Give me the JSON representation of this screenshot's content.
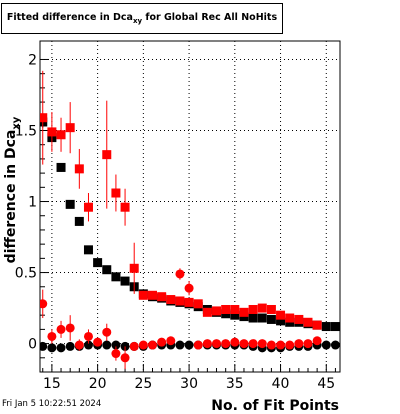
{
  "chart_data": {
    "type": "scatter",
    "title_prefix": "Fitted difference in Dca",
    "title_sub": "xy",
    "title_suffix": " for Global Rec All NoHits",
    "xlabel": "No. of Fit Points",
    "ylabel_main": "difference in Dca",
    "ylabel_sub": "xy",
    "xlim": [
      13.7,
      46.5
    ],
    "ylim": [
      -0.2,
      2.13
    ],
    "x_ticks": [
      15,
      20,
      25,
      30,
      35,
      40,
      45
    ],
    "y_ticks": [
      0,
      0.5,
      1,
      1.5,
      2
    ],
    "y_tick_labels": [
      "0",
      "0.5",
      "1",
      "1.5",
      "2"
    ],
    "grid": true,
    "series": [
      {
        "marker": "square",
        "color": "#000000",
        "points": [
          {
            "x": 14,
            "y": 1.56,
            "err": 0.04
          },
          {
            "x": 15,
            "y": 1.45,
            "err": 0.03
          },
          {
            "x": 16,
            "y": 1.24,
            "err": 0.03
          },
          {
            "x": 17,
            "y": 0.98,
            "err": 0.02
          },
          {
            "x": 18,
            "y": 0.86,
            "err": 0.02
          },
          {
            "x": 19,
            "y": 0.66,
            "err": 0.02
          },
          {
            "x": 20,
            "y": 0.57,
            "err": 0.02
          },
          {
            "x": 21,
            "y": 0.52,
            "err": 0.01
          },
          {
            "x": 22,
            "y": 0.47,
            "err": 0.01
          },
          {
            "x": 23,
            "y": 0.44,
            "err": 0.01
          },
          {
            "x": 24,
            "y": 0.4,
            "err": 0.01
          },
          {
            "x": 25,
            "y": 0.35,
            "err": 0.01
          },
          {
            "x": 26,
            "y": 0.33,
            "err": 0.01
          },
          {
            "x": 27,
            "y": 0.32,
            "err": 0.01
          },
          {
            "x": 28,
            "y": 0.3,
            "err": 0.01
          },
          {
            "x": 29,
            "y": 0.29,
            "err": 0.01
          },
          {
            "x": 30,
            "y": 0.28,
            "err": 0.01
          },
          {
            "x": 31,
            "y": 0.26,
            "err": 0.01
          },
          {
            "x": 32,
            "y": 0.24,
            "err": 0.01
          },
          {
            "x": 33,
            "y": 0.22,
            "err": 0.01
          },
          {
            "x": 34,
            "y": 0.21,
            "err": 0.01
          },
          {
            "x": 35,
            "y": 0.2,
            "err": 0.01
          },
          {
            "x": 36,
            "y": 0.19,
            "err": 0.01
          },
          {
            "x": 37,
            "y": 0.18,
            "err": 0.01
          },
          {
            "x": 38,
            "y": 0.18,
            "err": 0.01
          },
          {
            "x": 39,
            "y": 0.17,
            "err": 0.01
          },
          {
            "x": 40,
            "y": 0.16,
            "err": 0.01
          },
          {
            "x": 41,
            "y": 0.15,
            "err": 0.01
          },
          {
            "x": 42,
            "y": 0.15,
            "err": 0.01
          },
          {
            "x": 43,
            "y": 0.14,
            "err": 0.01
          },
          {
            "x": 44,
            "y": 0.13,
            "err": 0.01
          },
          {
            "x": 45,
            "y": 0.12,
            "err": 0.01
          },
          {
            "x": 46,
            "y": 0.12,
            "err": 0.01
          }
        ]
      },
      {
        "marker": "square",
        "color": "#ff0000",
        "points": [
          {
            "x": 14,
            "y": 1.59,
            "err": 0.33
          },
          {
            "x": 15,
            "y": 1.49,
            "err": 0.14
          },
          {
            "x": 16,
            "y": 1.47,
            "err": 0.12
          },
          {
            "x": 17,
            "y": 1.52,
            "err": 0.18
          },
          {
            "x": 18,
            "y": 1.23,
            "err": 0.14
          },
          {
            "x": 19,
            "y": 0.96,
            "err": 0.1
          },
          {
            "x": 21,
            "y": 1.33,
            "err": 0.38
          },
          {
            "x": 22,
            "y": 1.06,
            "err": 0.13
          },
          {
            "x": 23,
            "y": 0.96,
            "err": 0.13
          },
          {
            "x": 24,
            "y": 0.53,
            "err": 0.18
          },
          {
            "x": 25,
            "y": 0.34,
            "err": 0.02
          },
          {
            "x": 26,
            "y": 0.34,
            "err": 0.02
          },
          {
            "x": 27,
            "y": 0.33,
            "err": 0.02
          },
          {
            "x": 28,
            "y": 0.31,
            "err": 0.02
          },
          {
            "x": 29,
            "y": 0.3,
            "err": 0.02
          },
          {
            "x": 30,
            "y": 0.29,
            "err": 0.02
          },
          {
            "x": 31,
            "y": 0.28,
            "err": 0.02
          },
          {
            "x": 32,
            "y": 0.22,
            "err": 0.02
          },
          {
            "x": 33,
            "y": 0.23,
            "err": 0.02
          },
          {
            "x": 34,
            "y": 0.24,
            "err": 0.02
          },
          {
            "x": 35,
            "y": 0.24,
            "err": 0.02
          },
          {
            "x": 36,
            "y": 0.22,
            "err": 0.02
          },
          {
            "x": 37,
            "y": 0.24,
            "err": 0.02
          },
          {
            "x": 38,
            "y": 0.25,
            "err": 0.02
          },
          {
            "x": 39,
            "y": 0.24,
            "err": 0.02
          },
          {
            "x": 40,
            "y": 0.2,
            "err": 0.02
          },
          {
            "x": 41,
            "y": 0.18,
            "err": 0.02
          },
          {
            "x": 42,
            "y": 0.17,
            "err": 0.02
          },
          {
            "x": 43,
            "y": 0.15,
            "err": 0.02
          },
          {
            "x": 44,
            "y": 0.13,
            "err": 0.02
          }
        ]
      },
      {
        "marker": "circle",
        "color": "#000000",
        "points": [
          {
            "x": 14,
            "y": -0.02,
            "err": 0.01
          },
          {
            "x": 15,
            "y": -0.03,
            "err": 0.01
          },
          {
            "x": 16,
            "y": -0.03,
            "err": 0.01
          },
          {
            "x": 17,
            "y": -0.02,
            "err": 0.01
          },
          {
            "x": 18,
            "y": -0.02,
            "err": 0.01
          },
          {
            "x": 19,
            "y": -0.01,
            "err": 0.01
          },
          {
            "x": 20,
            "y": -0.01,
            "err": 0.01
          },
          {
            "x": 21,
            "y": -0.01,
            "err": 0.01
          },
          {
            "x": 22,
            "y": -0.01,
            "err": 0.01
          },
          {
            "x": 23,
            "y": -0.02,
            "err": 0.01
          },
          {
            "x": 24,
            "y": -0.02,
            "err": 0.01
          },
          {
            "x": 25,
            "y": -0.02,
            "err": 0.01
          },
          {
            "x": 26,
            "y": -0.01,
            "err": 0.01
          },
          {
            "x": 27,
            "y": -0.01,
            "err": 0.01
          },
          {
            "x": 28,
            "y": -0.01,
            "err": 0.01
          },
          {
            "x": 29,
            "y": -0.01,
            "err": 0.01
          },
          {
            "x": 30,
            "y": -0.01,
            "err": 0.01
          },
          {
            "x": 31,
            "y": -0.01,
            "err": 0.01
          },
          {
            "x": 32,
            "y": -0.01,
            "err": 0.01
          },
          {
            "x": 33,
            "y": -0.01,
            "err": 0.01
          },
          {
            "x": 34,
            "y": -0.01,
            "err": 0.01
          },
          {
            "x": 35,
            "y": -0.01,
            "err": 0.01
          },
          {
            "x": 36,
            "y": -0.01,
            "err": 0.01
          },
          {
            "x": 37,
            "y": -0.02,
            "err": 0.01
          },
          {
            "x": 38,
            "y": -0.03,
            "err": 0.01
          },
          {
            "x": 39,
            "y": -0.03,
            "err": 0.01
          },
          {
            "x": 40,
            "y": -0.03,
            "err": 0.01
          },
          {
            "x": 41,
            "y": -0.02,
            "err": 0.01
          },
          {
            "x": 42,
            "y": -0.02,
            "err": 0.01
          },
          {
            "x": 43,
            "y": -0.02,
            "err": 0.01
          },
          {
            "x": 44,
            "y": -0.01,
            "err": 0.01
          },
          {
            "x": 45,
            "y": -0.01,
            "err": 0.01
          },
          {
            "x": 46,
            "y": -0.01,
            "err": 0.01
          }
        ]
      },
      {
        "marker": "circle",
        "color": "#ff0000",
        "points": [
          {
            "x": 14,
            "y": 0.28,
            "err": 0.1
          },
          {
            "x": 15,
            "y": 0.05,
            "err": 0.05
          },
          {
            "x": 16,
            "y": 0.1,
            "err": 0.06
          },
          {
            "x": 17,
            "y": 0.11,
            "err": 0.09
          },
          {
            "x": 18,
            "y": -0.01,
            "err": 0.04
          },
          {
            "x": 19,
            "y": 0.05,
            "err": 0.05
          },
          {
            "x": 20,
            "y": 0.01,
            "err": 0.03
          },
          {
            "x": 21,
            "y": 0.08,
            "err": 0.06
          },
          {
            "x": 22,
            "y": -0.07,
            "err": 0.05
          },
          {
            "x": 23,
            "y": -0.1,
            "err": 0.08
          },
          {
            "x": 24,
            "y": -0.02,
            "err": 0.02
          },
          {
            "x": 25,
            "y": -0.01,
            "err": 0.02
          },
          {
            "x": 26,
            "y": -0.01,
            "err": 0.01
          },
          {
            "x": 27,
            "y": 0.01,
            "err": 0.01
          },
          {
            "x": 28,
            "y": 0.02,
            "err": 0.01
          },
          {
            "x": 29,
            "y": 0.49,
            "err": 0.04
          },
          {
            "x": 30,
            "y": 0.39,
            "err": 0.05
          },
          {
            "x": 31,
            "y": -0.01,
            "err": 0.01
          },
          {
            "x": 32,
            "y": 0.0,
            "err": 0.01
          },
          {
            "x": 33,
            "y": 0.0,
            "err": 0.01
          },
          {
            "x": 34,
            "y": 0.0,
            "err": 0.01
          },
          {
            "x": 35,
            "y": 0.01,
            "err": 0.01
          },
          {
            "x": 36,
            "y": 0.0,
            "err": 0.01
          },
          {
            "x": 37,
            "y": 0.0,
            "err": 0.01
          },
          {
            "x": 38,
            "y": 0.0,
            "err": 0.01
          },
          {
            "x": 39,
            "y": -0.01,
            "err": 0.01
          },
          {
            "x": 40,
            "y": -0.01,
            "err": 0.01
          },
          {
            "x": 41,
            "y": -0.01,
            "err": 0.01
          },
          {
            "x": 42,
            "y": 0.0,
            "err": 0.01
          },
          {
            "x": 43,
            "y": 0.0,
            "err": 0.01
          },
          {
            "x": 44,
            "y": 0.02,
            "err": 0.01
          }
        ]
      }
    ]
  },
  "footer": {
    "timestamp": "Fri Jan  5 10:22:51 2024"
  }
}
